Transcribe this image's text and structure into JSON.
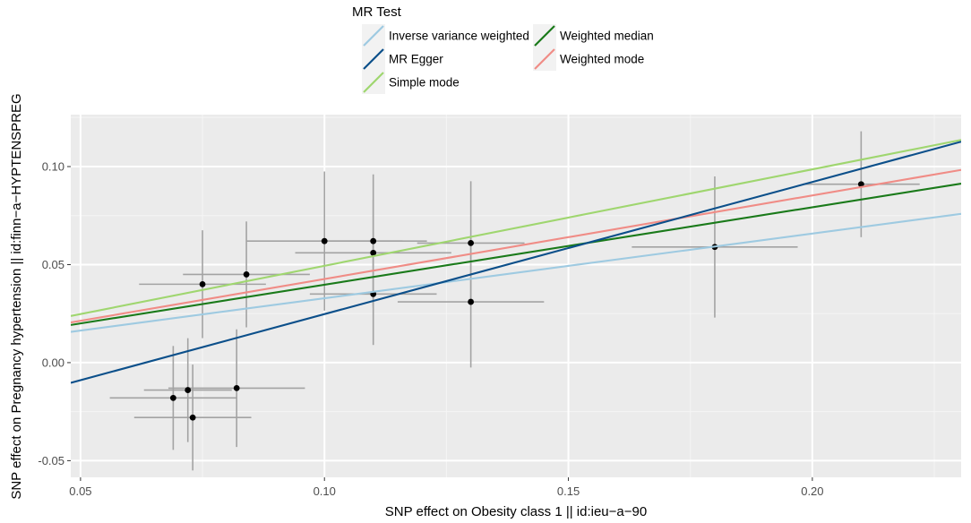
{
  "chart_data": {
    "type": "scatter",
    "title": "",
    "xlabel": "SNP effect on Obesity class 1 || id:ieu−a−90",
    "ylabel": "SNP effect on Pregnancy hypertension || id:finn−a−HYPTENSPREG",
    "xlim": [
      0.048,
      0.2305
    ],
    "ylim": [
      -0.0585,
      0.1265
    ],
    "x_ticks": [
      0.05,
      0.1,
      0.15,
      0.2
    ],
    "x_tick_labels": [
      "0.05",
      "0.10",
      "0.15",
      "0.20"
    ],
    "y_ticks": [
      -0.05,
      0.0,
      0.05,
      0.1
    ],
    "y_tick_labels": [
      "-0.05",
      "0.00",
      "0.05",
      "0.10"
    ],
    "grid": true,
    "legend": {
      "title": "MR Test",
      "position": "top-center",
      "entries": [
        {
          "label": "Inverse variance weighted",
          "color": "#9ecae1"
        },
        {
          "label": "MR Egger",
          "color": "#0b4f8a"
        },
        {
          "label": "Simple mode",
          "color": "#9fd66f"
        },
        {
          "label": "Weighted median",
          "color": "#1a7a1a"
        },
        {
          "label": "Weighted mode",
          "color": "#f08c86"
        }
      ]
    },
    "points": [
      {
        "x": 0.069,
        "y": -0.018,
        "xerr": 0.013,
        "yerr": 0.0265
      },
      {
        "x": 0.072,
        "y": -0.014,
        "xerr": 0.009,
        "yerr": 0.0265
      },
      {
        "x": 0.073,
        "y": -0.028,
        "xerr": 0.012,
        "yerr": 0.027
      },
      {
        "x": 0.075,
        "y": 0.04,
        "xerr": 0.013,
        "yerr": 0.0275
      },
      {
        "x": 0.082,
        "y": -0.013,
        "xerr": 0.014,
        "yerr": 0.03
      },
      {
        "x": 0.084,
        "y": 0.045,
        "xerr": 0.013,
        "yerr": 0.027
      },
      {
        "x": 0.1,
        "y": 0.062,
        "xerr": 0.016,
        "yerr": 0.0355
      },
      {
        "x": 0.11,
        "y": 0.062,
        "xerr": 0.011,
        "yerr": 0.034
      },
      {
        "x": 0.11,
        "y": 0.056,
        "xerr": 0.016,
        "yerr": 0.027
      },
      {
        "x": 0.11,
        "y": 0.035,
        "xerr": 0.013,
        "yerr": 0.026
      },
      {
        "x": 0.13,
        "y": 0.061,
        "xerr": 0.011,
        "yerr": 0.0315
      },
      {
        "x": 0.13,
        "y": 0.031,
        "xerr": 0.015,
        "yerr": 0.0335
      },
      {
        "x": 0.18,
        "y": 0.059,
        "xerr": 0.017,
        "yerr": 0.036
      },
      {
        "x": 0.21,
        "y": 0.091,
        "xerr": 0.012,
        "yerr": 0.027
      }
    ],
    "series": [
      {
        "name": "Inverse variance weighted",
        "color": "#9ecae1",
        "x": [
          0.048,
          0.2305
        ],
        "y": [
          0.0157,
          0.0759
        ]
      },
      {
        "name": "Simple mode",
        "color": "#9fd66f",
        "x": [
          0.048,
          0.2305
        ],
        "y": [
          0.0238,
          0.1136
        ]
      },
      {
        "name": "Weighted mode",
        "color": "#f08c86",
        "x": [
          0.048,
          0.2305
        ],
        "y": [
          0.0205,
          0.0983
        ]
      },
      {
        "name": "Weighted median",
        "color": "#1a7a1a",
        "x": [
          0.048,
          0.2305
        ],
        "y": [
          0.0192,
          0.0913
        ]
      },
      {
        "name": "MR Egger",
        "color": "#0b4f8a",
        "x": [
          0.048,
          0.2305
        ],
        "y": [
          -0.0103,
          0.1127
        ]
      }
    ]
  }
}
